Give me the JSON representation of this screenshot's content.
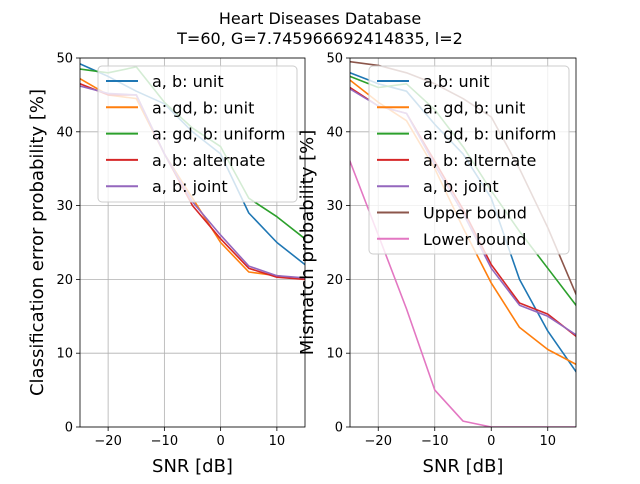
{
  "suptitle": [
    "Heart Diseases Database",
    "T=60, G=7.745966692414835, l=2"
  ],
  "colors": {
    "blue": "#1f77b4",
    "orange": "#ff7f0e",
    "green": "#2ca02c",
    "red": "#d62728",
    "purple": "#9467bd",
    "brown": "#8c564b",
    "pink": "#e377c2"
  },
  "chart_data": [
    {
      "type": "line",
      "xlabel": "SNR [dB]",
      "ylabel": "Classification error probability [%]",
      "xlim": [
        -25,
        15
      ],
      "ylim": [
        0,
        50
      ],
      "xticks": [
        -20,
        -10,
        0,
        10
      ],
      "xtick_labels": [
        "−20",
        "−10",
        "0",
        "10"
      ],
      "yticks": [
        0,
        10,
        20,
        30,
        40,
        50
      ],
      "ytick_labels": [
        "0",
        "10",
        "20",
        "30",
        "40",
        "50"
      ],
      "grid": true,
      "legend_position": "top-right",
      "x": [
        -25,
        -20,
        -15,
        -10,
        -5,
        0,
        5,
        10,
        15
      ],
      "series": [
        {
          "name": "a, b: unit",
          "color": "#1f77b4",
          "values": [
            49.2,
            47.5,
            45.5,
            43.8,
            40.0,
            37.0,
            29.0,
            25.0,
            22.0
          ]
        },
        {
          "name": "a: gd, b: unit",
          "color": "#ff7f0e",
          "values": [
            47.2,
            45.0,
            44.5,
            37.0,
            31.0,
            25.0,
            21.0,
            20.5,
            20.0
          ]
        },
        {
          "name": "a: gd, b: uniform",
          "color": "#2ca02c",
          "values": [
            48.5,
            48.0,
            48.8,
            44.0,
            40.5,
            38.0,
            31.0,
            28.5,
            25.5
          ]
        },
        {
          "name": "a, b: alternate",
          "color": "#d62728",
          "values": [
            46.5,
            45.0,
            45.0,
            37.0,
            30.0,
            25.5,
            21.5,
            20.3,
            20.0
          ]
        },
        {
          "name": "a, b: joint",
          "color": "#9467bd",
          "values": [
            46.2,
            45.2,
            45.0,
            37.0,
            30.5,
            26.0,
            21.8,
            20.5,
            20.2
          ]
        }
      ]
    },
    {
      "type": "line",
      "xlabel": "SNR [dB]",
      "ylabel": "Mismatch probability [%]",
      "xlim": [
        -25,
        15
      ],
      "ylim": [
        0,
        50
      ],
      "xticks": [
        -20,
        -10,
        0,
        10
      ],
      "xtick_labels": [
        "−20",
        "−10",
        "0",
        "10"
      ],
      "yticks": [
        0,
        10,
        20,
        30,
        40,
        50
      ],
      "ytick_labels": [
        "0",
        "10",
        "20",
        "30",
        "40",
        "50"
      ],
      "grid": true,
      "legend_position": "top-right",
      "x": [
        -25,
        -20,
        -15,
        -10,
        -5,
        0,
        5,
        10,
        15
      ],
      "series": [
        {
          "name": "a,b: unit",
          "color": "#1f77b4",
          "values": [
            48.0,
            46.5,
            45.5,
            41.0,
            37.0,
            31.0,
            20.0,
            13.0,
            7.5
          ]
        },
        {
          "name": "a: gd, b: unit",
          "color": "#ff7f0e",
          "values": [
            47.0,
            44.0,
            41.5,
            35.0,
            27.0,
            19.5,
            13.5,
            10.5,
            8.5
          ]
        },
        {
          "name": "a: gd, b: uniform",
          "color": "#2ca02c",
          "values": [
            47.5,
            46.0,
            46.5,
            43.0,
            38.0,
            32.0,
            26.5,
            21.5,
            16.5
          ]
        },
        {
          "name": "a, b: alternate",
          "color": "#d62728",
          "values": [
            46.0,
            43.5,
            42.5,
            36.0,
            29.5,
            22.0,
            16.8,
            15.3,
            12.3
          ]
        },
        {
          "name": "a, b: joint",
          "color": "#9467bd",
          "values": [
            45.8,
            43.5,
            42.5,
            35.5,
            29.0,
            21.5,
            16.5,
            15.0,
            12.5
          ]
        },
        {
          "name": "Upper bound",
          "color": "#8c564b",
          "values": [
            49.5,
            49.0,
            48.0,
            46.5,
            44.5,
            42.0,
            35.0,
            27.0,
            18.0
          ]
        },
        {
          "name": "Lower bound",
          "color": "#e377c2",
          "values": [
            36.0,
            26.0,
            16.0,
            5.0,
            0.8,
            0.0,
            0.0,
            0.0,
            0.0
          ]
        }
      ]
    }
  ]
}
